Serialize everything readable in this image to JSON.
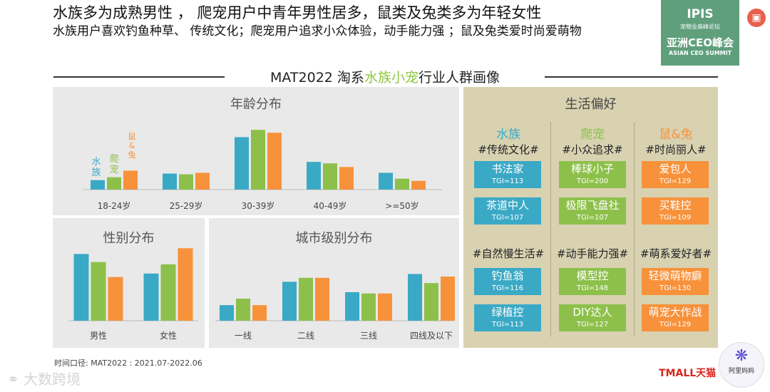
{
  "header": {
    "line1": "水族多为成熟男性 ， 爬宠用户中青年男性居多，鼠类及兔类多为年轻女性",
    "line2": "水族用户喜欢钓鱼种草、  传统文化；爬宠用户追求小众体验，动手能力强 ；鼠及兔类爱时尚爱萌物"
  },
  "banner": {
    "prefix": "MAT2022 淘系",
    "highlight": "水族小宠",
    "suffix": "行业人群画像"
  },
  "colors": {
    "aqua": "#3aa9c6",
    "reptile": "#8dc04a",
    "rodent": "#f7923a",
    "panel": "#e9e9e9",
    "lifestyle_bg": "#d8d2b1"
  },
  "chart_data": [
    {
      "type": "bar",
      "title": "年龄分布",
      "categories": [
        "18-24岁",
        "25-29岁",
        "30-39岁",
        "40-49岁",
        ">=50岁"
      ],
      "series": [
        {
          "name": "水族",
          "values": [
            13,
            22,
            72,
            38,
            23
          ]
        },
        {
          "name": "爬宠",
          "values": [
            17,
            21,
            82,
            36,
            15
          ]
        },
        {
          "name": "鼠&兔",
          "values": [
            26,
            23,
            78,
            31,
            12
          ]
        }
      ],
      "ylim": [
        0,
        90
      ],
      "legend": [
        "水族",
        "爬宠",
        "鼠&兔"
      ]
    },
    {
      "type": "bar",
      "title": "性别分布",
      "categories": [
        "男性",
        "女性"
      ],
      "series": [
        {
          "name": "水族",
          "values": [
            58,
            41
          ]
        },
        {
          "name": "爬宠",
          "values": [
            51,
            49
          ]
        },
        {
          "name": "鼠&兔",
          "values": [
            38,
            63
          ]
        }
      ],
      "ylim": [
        0,
        70
      ]
    },
    {
      "type": "bar",
      "title": "城市级别分布",
      "categories": [
        "一线",
        "二线",
        "三线",
        "四线及以下"
      ],
      "series": [
        {
          "name": "水族",
          "values": [
            12,
            30,
            22,
            36
          ]
        },
        {
          "name": "爬宠",
          "values": [
            17,
            33,
            21,
            29
          ]
        },
        {
          "name": "鼠&兔",
          "values": [
            12,
            33,
            21,
            34
          ]
        }
      ],
      "ylim": [
        0,
        45
      ]
    }
  ],
  "lifestyle": {
    "title": "生活偏好",
    "columns": [
      {
        "name": "水族",
        "color": "#3aa9c6",
        "tag1": "#传统文化#",
        "cards1": [
          {
            "name": "书法家",
            "tgi": "TGI=113"
          },
          {
            "name": "茶道中人",
            "tgi": "TGI=107"
          }
        ],
        "tag2": "#自然慢生活#",
        "cards2": [
          {
            "name": "钓鱼翁",
            "tgi": "TGI=116"
          },
          {
            "name": "绿植控",
            "tgi": "TGI=113"
          }
        ]
      },
      {
        "name": "爬宠",
        "color": "#8dc04a",
        "tag1": "#小众追求#",
        "cards1": [
          {
            "name": "棒球小子",
            "tgi": "TGI=200"
          },
          {
            "name": "极限飞盘社",
            "tgi": "TGI=107"
          }
        ],
        "tag2": "#动手能力强#",
        "cards2": [
          {
            "name": "模型控",
            "tgi": "TGI=148"
          },
          {
            "name": "DIY达人",
            "tgi": "TGI=127"
          }
        ]
      },
      {
        "name": "鼠&兔",
        "color": "#f7923a",
        "tag1": "#时尚丽人#",
        "cards1": [
          {
            "name": "爱包人",
            "tgi": "TGI=129"
          },
          {
            "name": "买鞋控",
            "tgi": "TGI=109"
          }
        ],
        "tag2": "#萌系爱好者#",
        "cards2": [
          {
            "name": "轻微萌物癖",
            "tgi": "TGI=130"
          },
          {
            "name": "萌宠大作战",
            "tgi": "TGI=129"
          }
        ]
      }
    ]
  },
  "footer": {
    "note": "时间口径:    MAT2022 :  2021.07-2022.06"
  },
  "logos": {
    "ipis_line1": "IPIS",
    "ipis_line2": "宠物业高峰论坛",
    "ipis_line3": "亚洲CEO峰会",
    "ipis_line4": "ASIAN CEO SUMMIT",
    "watermark": "大数跨境",
    "tmall": "TMALL天猫",
    "ali": "阿里妈妈",
    "ali_icon": "dots-icon",
    "red_icon": "document-icon"
  }
}
